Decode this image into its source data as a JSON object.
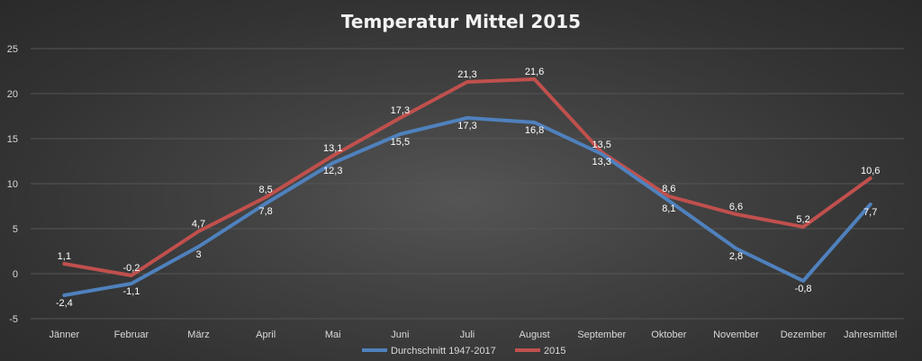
{
  "chart_data": {
    "type": "line",
    "title": "Temperatur Mittel 2015",
    "xlabel": "",
    "ylabel": "",
    "categories": [
      "Jänner",
      "Februar",
      "März",
      "April",
      "Mai",
      "Juni",
      "Juli",
      "August",
      "September",
      "Oktober",
      "November",
      "Dezember",
      "Jahresmittel"
    ],
    "ylim": [
      -5,
      25
    ],
    "yticks": [
      -5,
      0,
      5,
      10,
      15,
      20,
      25
    ],
    "grid": true,
    "legend_position": "bottom",
    "series": [
      {
        "name": "Durchschnitt 1947-2017",
        "color": "#4f81bd",
        "values": [
          -2.4,
          -1.1,
          3,
          7.8,
          12.3,
          15.5,
          17.3,
          16.8,
          13.3,
          8.1,
          2.8,
          -0.8,
          7.7
        ],
        "labels": [
          "-2,4",
          "-1,1",
          "3",
          "7,8",
          "12,3",
          "15,5",
          "17,3",
          "16,8",
          "13,3",
          "8,1",
          "2,8",
          "-0,8",
          "7,7"
        ]
      },
      {
        "name": "2015",
        "color": "#c0504d",
        "values": [
          1.1,
          -0.2,
          4.7,
          8.5,
          13.1,
          17.3,
          21.3,
          21.6,
          13.5,
          8.6,
          6.6,
          5.2,
          10.6
        ],
        "labels": [
          "1,1",
          "-0,2",
          "4,7",
          "8,5",
          "13,1",
          "17,3",
          "21,3",
          "21,6",
          "13,5",
          "8,6",
          "6,6",
          "5,2",
          "10,6"
        ]
      }
    ]
  }
}
